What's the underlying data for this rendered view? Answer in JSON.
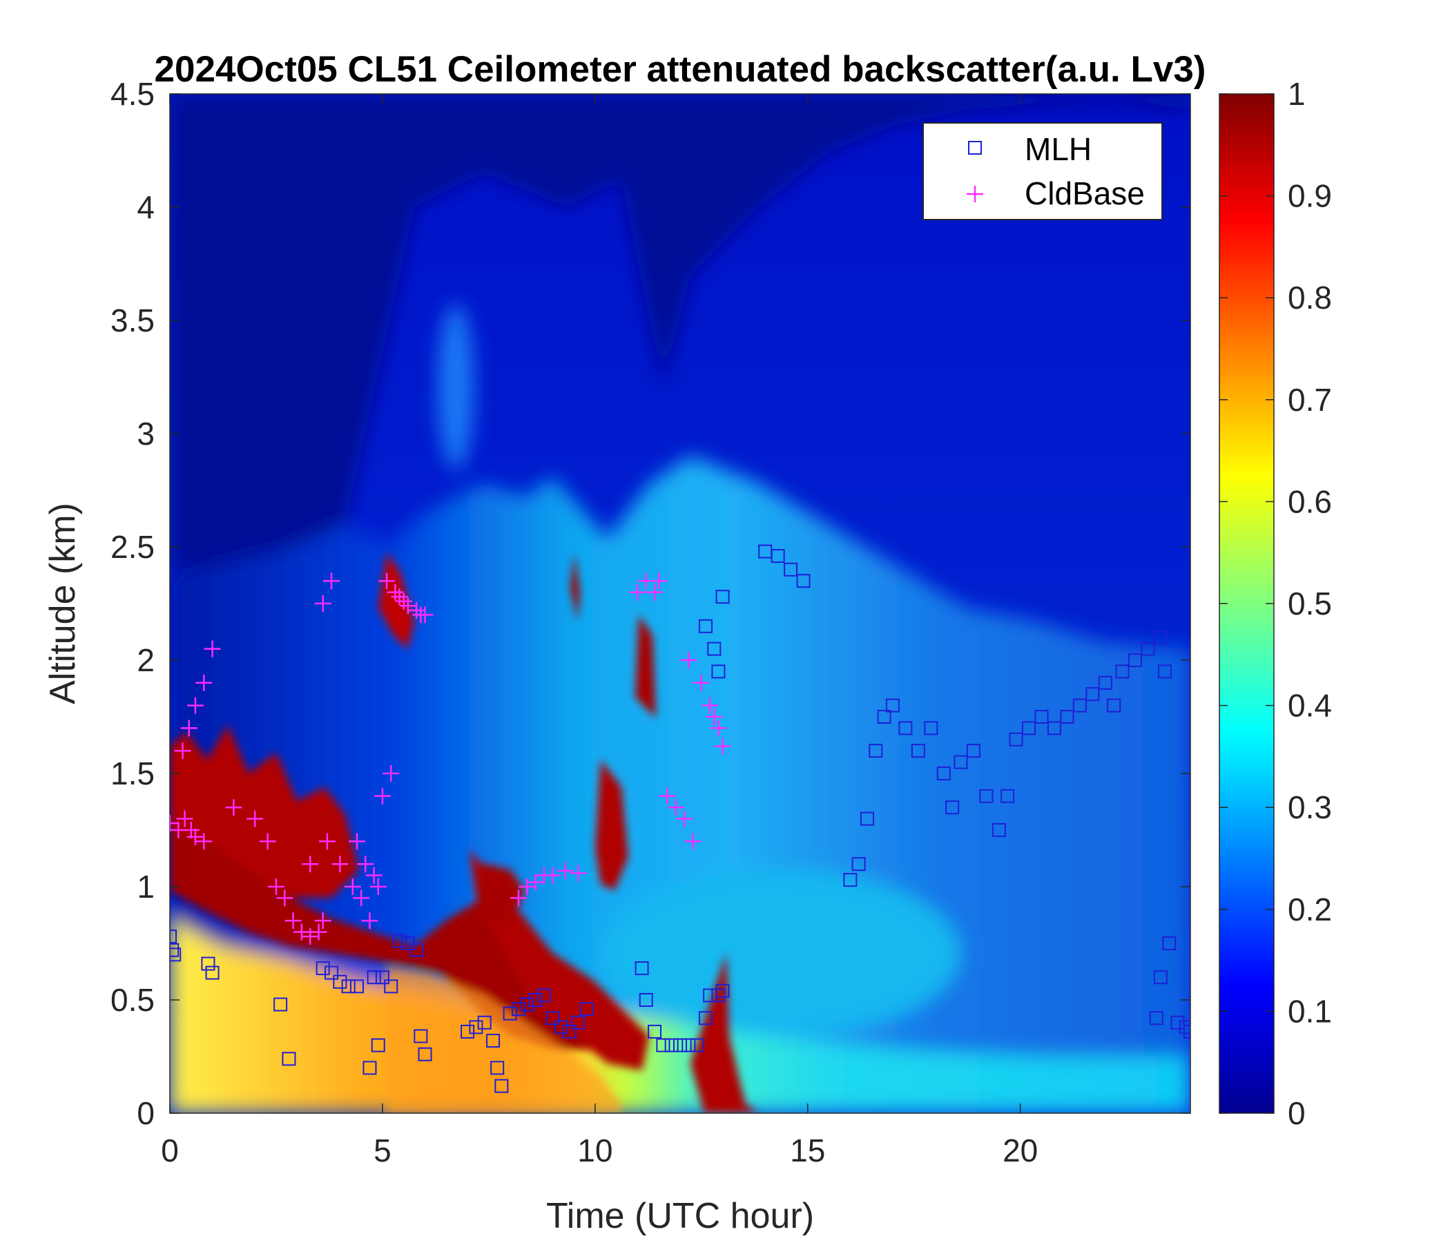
{
  "chart_data": {
    "type": "heatmap",
    "title": "2024Oct05 CL51 Ceilometer attenuated backscatter(a.u. Lv3)",
    "xlabel": "Time (UTC hour)",
    "ylabel": "Altitude (km)",
    "xlim": [
      0,
      24
    ],
    "ylim": [
      0,
      4.5
    ],
    "xticks": [
      "0",
      "5",
      "10",
      "15",
      "20"
    ],
    "xtick_values": [
      0,
      5,
      10,
      15,
      20
    ],
    "yticks": [
      "0",
      "0.5",
      "1",
      "1.5",
      "2",
      "2.5",
      "3",
      "3.5",
      "4",
      "4.5"
    ],
    "ytick_values": [
      0,
      0.5,
      1,
      1.5,
      2,
      2.5,
      3,
      3.5,
      4,
      4.5
    ],
    "colorbar": {
      "colormap": "jet",
      "clim": [
        0,
        1
      ],
      "ticks": [
        "0",
        "0.1",
        "0.2",
        "0.3",
        "0.4",
        "0.5",
        "0.6",
        "0.7",
        "0.8",
        "0.9",
        "1"
      ],
      "tick_values": [
        0,
        0.1,
        0.2,
        0.3,
        0.4,
        0.5,
        0.6,
        0.7,
        0.8,
        0.9,
        1.0
      ]
    },
    "legend": {
      "location": "top-right",
      "entries": [
        {
          "label": "MLH",
          "marker": "square",
          "color": "#1f1fd6"
        },
        {
          "label": "CldBase",
          "marker": "plus",
          "color": "#ff2bff"
        }
      ]
    },
    "series": [
      {
        "name": "MLH",
        "marker": "square",
        "color": "#1f1fd6",
        "x": [
          0,
          0.05,
          0.1,
          0.9,
          1.0,
          2.6,
          2.8,
          3.6,
          3.8,
          4.0,
          4.2,
          4.4,
          4.8,
          5.0,
          5.2,
          4.7,
          4.9,
          5.4,
          5.6,
          5.8,
          5.9,
          6.0,
          7.0,
          7.2,
          7.4,
          7.6,
          7.7,
          7.8,
          8.0,
          8.2,
          8.4,
          8.6,
          8.8,
          9.0,
          9.2,
          9.4,
          9.6,
          9.8,
          11.1,
          11.2,
          11.4,
          11.6,
          11.8,
          12.0,
          12.2,
          12.4,
          12.6,
          12.7,
          12.9,
          13.0,
          12.6,
          12.8,
          12.9,
          13.0,
          14.0,
          14.3,
          14.6,
          14.9,
          16.0,
          16.2,
          16.4,
          16.6,
          16.8,
          17.0,
          17.3,
          17.6,
          17.9,
          18.2,
          18.4,
          18.6,
          18.9,
          19.2,
          19.5,
          19.7,
          19.9,
          20.2,
          20.5,
          20.8,
          21.1,
          21.4,
          21.7,
          22.0,
          22.2,
          22.4,
          22.7,
          23.0,
          23.3,
          23.4,
          23.2,
          23.3,
          23.5,
          23.7,
          23.9,
          24.0
        ],
        "y": [
          0.78,
          0.72,
          0.7,
          0.66,
          0.62,
          0.48,
          0.24,
          0.64,
          0.62,
          0.58,
          0.56,
          0.56,
          0.6,
          0.6,
          0.56,
          0.2,
          0.3,
          0.76,
          0.75,
          0.72,
          0.34,
          0.26,
          0.36,
          0.38,
          0.4,
          0.32,
          0.2,
          0.12,
          0.44,
          0.46,
          0.48,
          0.5,
          0.52,
          0.42,
          0.38,
          0.36,
          0.4,
          0.46,
          0.64,
          0.5,
          0.36,
          0.3,
          0.3,
          0.3,
          0.3,
          0.3,
          0.42,
          0.52,
          0.52,
          0.54,
          2.15,
          2.05,
          1.95,
          2.28,
          2.48,
          2.46,
          2.4,
          2.35,
          1.03,
          1.1,
          1.3,
          1.6,
          1.75,
          1.8,
          1.7,
          1.6,
          1.7,
          1.5,
          1.35,
          1.55,
          1.6,
          1.4,
          1.25,
          1.4,
          1.65,
          1.7,
          1.75,
          1.7,
          1.75,
          1.8,
          1.85,
          1.9,
          1.8,
          1.95,
          2.0,
          2.05,
          2.1,
          1.95,
          0.42,
          0.6,
          0.75,
          0.4,
          0.38,
          0.36
        ]
      },
      {
        "name": "CldBase",
        "marker": "plus",
        "color": "#ff2bff",
        "x": [
          0,
          0.2,
          0.35,
          0.5,
          0.6,
          0.8,
          0.3,
          0.45,
          0.6,
          0.8,
          1.0,
          1.5,
          2.0,
          2.3,
          2.5,
          2.7,
          2.9,
          3.1,
          3.3,
          3.5,
          3.6,
          3.3,
          3.7,
          3.8,
          3.6,
          4.0,
          4.3,
          4.5,
          4.7,
          4.9,
          5.0,
          5.2,
          4.4,
          4.6,
          4.8,
          5.1,
          5.3,
          5.4,
          5.5,
          5.6,
          5.8,
          5.9,
          6.0,
          8.2,
          8.4,
          8.6,
          8.8,
          9.0,
          9.3,
          9.6,
          11.0,
          11.2,
          11.4,
          11.5,
          11.7,
          11.9,
          12.1,
          12.3,
          12.2,
          12.5,
          12.7,
          12.8,
          12.9,
          13.0
        ],
        "y": [
          1.28,
          1.25,
          1.3,
          1.25,
          1.22,
          1.2,
          1.6,
          1.7,
          1.8,
          1.9,
          2.05,
          1.35,
          1.3,
          1.2,
          1.0,
          0.95,
          0.85,
          0.8,
          0.78,
          0.8,
          0.85,
          1.1,
          1.2,
          2.35,
          2.25,
          1.1,
          1.0,
          0.95,
          0.85,
          1.0,
          1.4,
          1.5,
          1.2,
          1.1,
          1.05,
          2.35,
          2.3,
          2.28,
          2.26,
          2.24,
          2.22,
          2.2,
          2.2,
          0.95,
          1.0,
          1.02,
          1.05,
          1.05,
          1.07,
          1.06,
          2.3,
          2.35,
          2.3,
          2.35,
          1.4,
          1.35,
          1.3,
          1.2,
          2.0,
          1.9,
          1.8,
          1.75,
          1.7,
          1.62
        ]
      }
    ]
  }
}
